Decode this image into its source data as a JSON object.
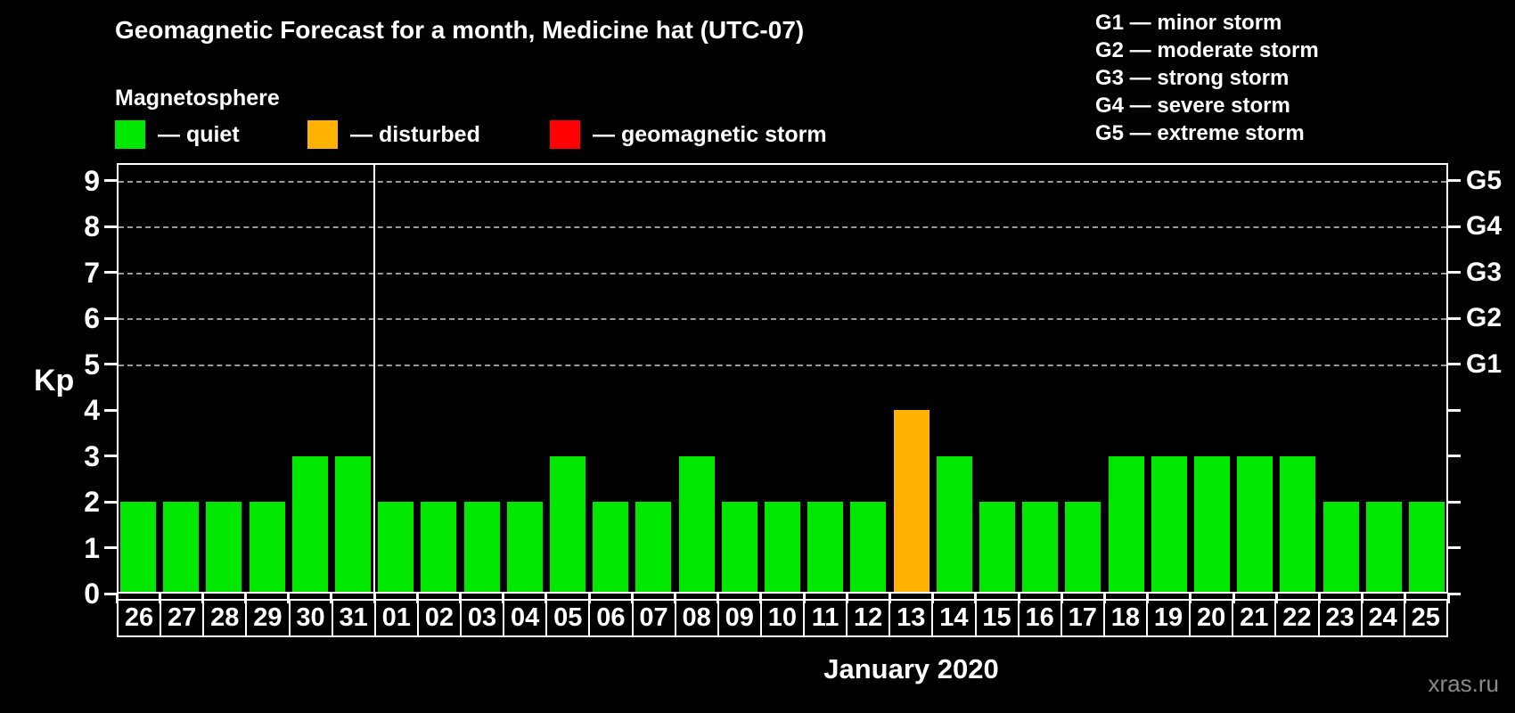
{
  "watermark": "xras.ru",
  "colors": {
    "quiet": "#00E800",
    "disturbed": "#FFB300",
    "storm": "#FF0000",
    "axis": "#FFFFFF",
    "grid": "#9A9A9A",
    "watermark": "#8A8A8A",
    "background": "#000000"
  },
  "legend": {
    "title": "Magnetosphere",
    "items": [
      {
        "status": "quiet",
        "label": "— quiet"
      },
      {
        "status": "disturbed",
        "label": "— disturbed"
      },
      {
        "status": "storm",
        "label": "— geomagnetic storm"
      }
    ]
  },
  "storm_scale": [
    "G1 — minor storm",
    "G2 — moderate storm",
    "G3 — strong storm",
    "G4 — severe storm",
    "G5 — extreme storm"
  ],
  "chart_data": {
    "type": "bar",
    "title": "Geomagnetic Forecast for a month, Medicine hat (UTC-07)",
    "ylabel": "Kp",
    "month_label": "January 2020",
    "ylim": [
      0,
      9.38
    ],
    "yticks": [
      0,
      1,
      2,
      3,
      4,
      5,
      6,
      7,
      8,
      9
    ],
    "gridline_levels": [
      5,
      6,
      7,
      8,
      9
    ],
    "right_axis_labels": [
      {
        "level": 5,
        "text": "G1"
      },
      {
        "level": 6,
        "text": "G2"
      },
      {
        "level": 7,
        "text": "G3"
      },
      {
        "level": 8,
        "text": "G4"
      },
      {
        "level": 9,
        "text": "G5"
      }
    ],
    "categories": [
      "26",
      "27",
      "28",
      "29",
      "30",
      "31",
      "01",
      "02",
      "03",
      "04",
      "05",
      "06",
      "07",
      "08",
      "09",
      "10",
      "11",
      "12",
      "13",
      "14",
      "15",
      "16",
      "17",
      "18",
      "19",
      "20",
      "21",
      "22",
      "23",
      "24",
      "25"
    ],
    "values": [
      2,
      2,
      2,
      2,
      3,
      3,
      2,
      2,
      2,
      2,
      3,
      2,
      2,
      3,
      2,
      2,
      2,
      2,
      4,
      3,
      2,
      2,
      2,
      3,
      3,
      3,
      3,
      3,
      2,
      2,
      2
    ],
    "status_thresholds": {
      "disturbed_min": 4,
      "storm_min": 5
    },
    "separator_after_index": 5,
    "legend_position": "top",
    "grid": "dashed horizontal at G levels"
  }
}
